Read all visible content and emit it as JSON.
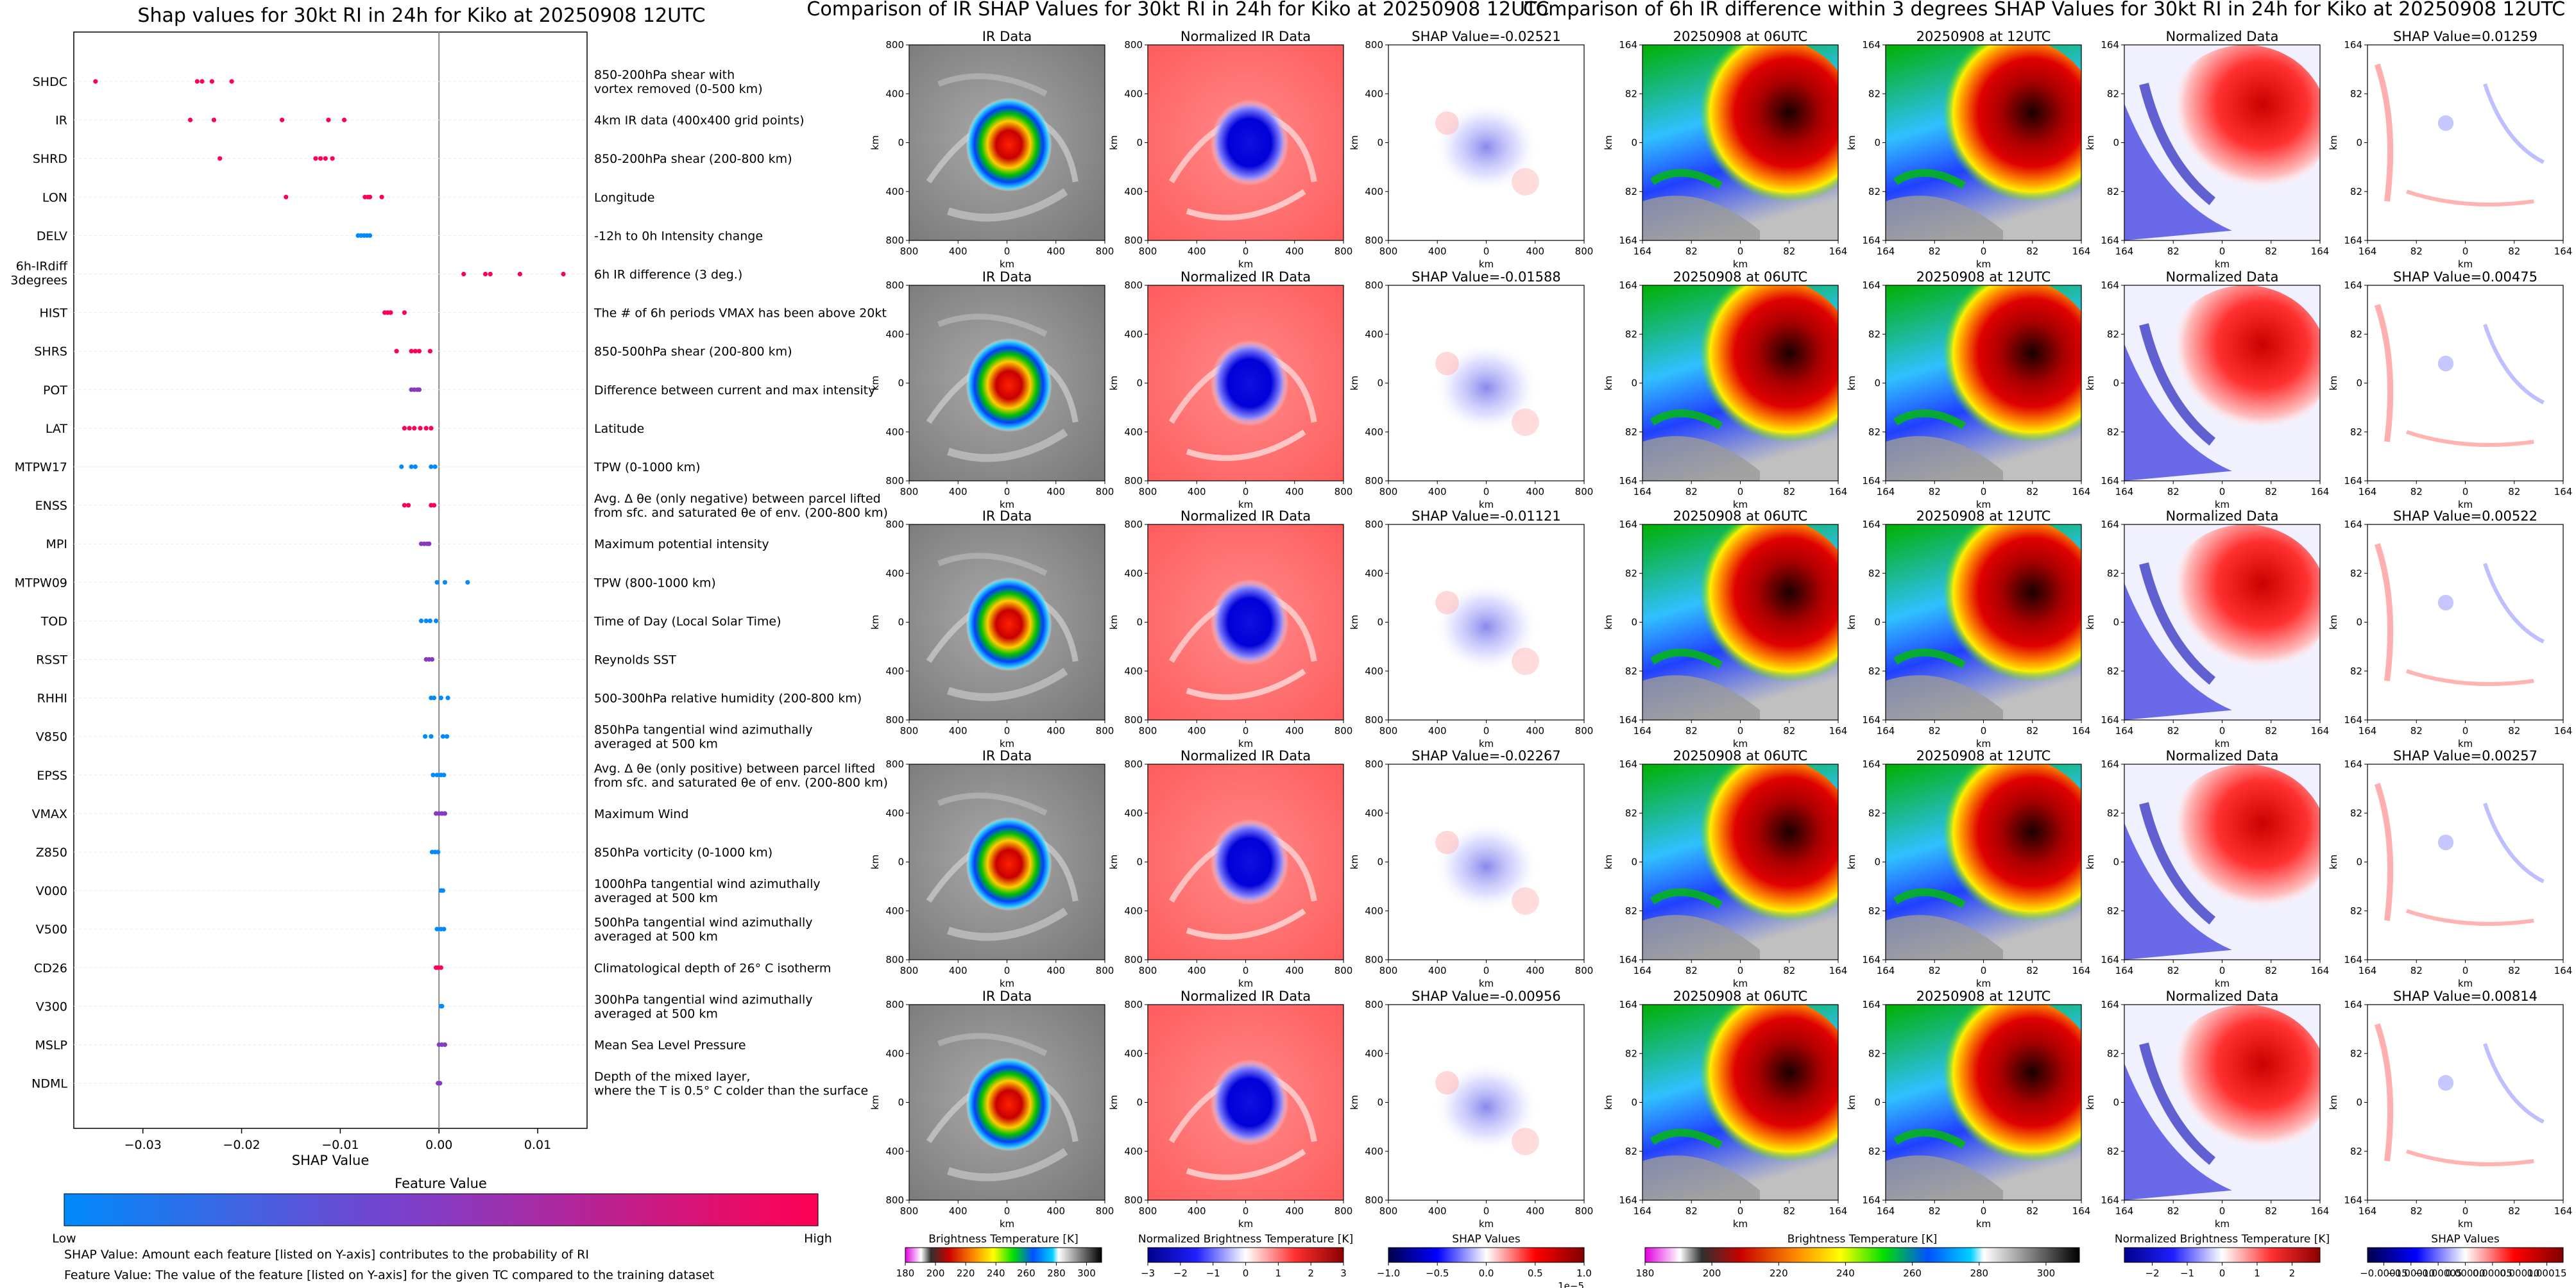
{
  "chart_data": [
    {
      "type": "scatter",
      "title": "Shap values for 30kt RI in 24h for Kiko at 20250908 12UTC",
      "xlabel": "SHAP Value",
      "xlim": [
        -0.037,
        0.015
      ],
      "xticks": [
        -0.03,
        -0.02,
        -0.01,
        0.0,
        0.01
      ],
      "xtick_labels": [
        "−0.03",
        "−0.02",
        "−0.01",
        "0.00",
        "0.01"
      ],
      "features": [
        {
          "name": "SHDC",
          "desc": "850-200hPa shear with\nvortex removed (0-500 km)",
          "points": [
            [
              -0.0348,
              1.0
            ],
            [
              -0.0245,
              1.0
            ],
            [
              -0.024,
              1.0
            ],
            [
              -0.023,
              1.0
            ],
            [
              -0.021,
              1.0
            ]
          ]
        },
        {
          "name": "IR",
          "desc": "4km IR data (400x400 grid points)",
          "points": [
            [
              -0.0252,
              1.0
            ],
            [
              -0.0228,
              1.0
            ],
            [
              -0.0159,
              1.0
            ],
            [
              -0.0112,
              1.0
            ],
            [
              -0.0096,
              1.0
            ]
          ]
        },
        {
          "name": "SHRD",
          "desc": "850-200hPa shear (200-800 km)",
          "points": [
            [
              -0.0222,
              1.0
            ],
            [
              -0.0125,
              1.0
            ],
            [
              -0.012,
              1.0
            ],
            [
              -0.0115,
              1.0
            ],
            [
              -0.0108,
              1.0
            ]
          ]
        },
        {
          "name": "LON",
          "desc": "Longitude",
          "points": [
            [
              -0.0155,
              1.0
            ],
            [
              -0.0075,
              1.0
            ],
            [
              -0.0072,
              1.0
            ],
            [
              -0.007,
              1.0
            ],
            [
              -0.0058,
              1.0
            ]
          ]
        },
        {
          "name": "DELV",
          "desc": "-12h to 0h Intensity change",
          "points": [
            [
              -0.0082,
              0.0
            ],
            [
              -0.0079,
              0.0
            ],
            [
              -0.0076,
              0.0
            ],
            [
              -0.0073,
              0.0
            ],
            [
              -0.007,
              0.0
            ]
          ]
        },
        {
          "name": "6h-IRdiff\n3degrees",
          "desc": "6h IR difference (3 deg.)",
          "points": [
            [
              0.0025,
              1.0
            ],
            [
              0.0047,
              1.0
            ],
            [
              0.0052,
              1.0
            ],
            [
              0.0082,
              1.0
            ],
            [
              0.0126,
              1.0
            ]
          ]
        },
        {
          "name": "HIST",
          "desc": "The # of 6h periods VMAX has been above 20kt",
          "points": [
            [
              -0.0055,
              1.0
            ],
            [
              -0.0052,
              1.0
            ],
            [
              -0.0049,
              1.0
            ],
            [
              -0.0035,
              1.0
            ]
          ]
        },
        {
          "name": "SHRS",
          "desc": "850-500hPa shear (200-800 km)",
          "points": [
            [
              -0.0043,
              1.0
            ],
            [
              -0.0028,
              1.0
            ],
            [
              -0.0024,
              1.0
            ],
            [
              -0.002,
              1.0
            ],
            [
              -0.0009,
              1.0
            ]
          ]
        },
        {
          "name": "POT",
          "desc": "Difference between current and max intensity",
          "points": [
            [
              -0.0028,
              0.5
            ],
            [
              -0.0025,
              0.5
            ],
            [
              -0.0022,
              0.5
            ],
            [
              -0.002,
              0.5
            ]
          ]
        },
        {
          "name": "LAT",
          "desc": "Latitude",
          "points": [
            [
              -0.0035,
              1.0
            ],
            [
              -0.003,
              1.0
            ],
            [
              -0.0025,
              1.0
            ],
            [
              -0.0019,
              1.0
            ],
            [
              -0.0013,
              1.0
            ],
            [
              -0.0008,
              1.0
            ]
          ]
        },
        {
          "name": "MTPW17",
          "desc": "TPW (0-1000 km)",
          "points": [
            [
              -0.0038,
              0.0
            ],
            [
              -0.0028,
              0.0
            ],
            [
              -0.0024,
              0.0
            ],
            [
              -0.0008,
              0.0
            ],
            [
              -0.0004,
              0.0
            ]
          ]
        },
        {
          "name": "ENSS",
          "desc": "Avg. Δ θe (only negative) between parcel lifted\nfrom sfc. and saturated θe of env. (200-800 km)",
          "points": [
            [
              -0.0035,
              1.0
            ],
            [
              -0.0031,
              1.0
            ],
            [
              -0.0008,
              1.0
            ],
            [
              -0.0005,
              1.0
            ]
          ]
        },
        {
          "name": "MPI",
          "desc": "Maximum potential intensity",
          "points": [
            [
              -0.0018,
              0.5
            ],
            [
              -0.0015,
              0.5
            ],
            [
              -0.0012,
              0.5
            ],
            [
              -0.001,
              0.5
            ]
          ]
        },
        {
          "name": "MTPW09",
          "desc": "TPW (800-1000 km)",
          "points": [
            [
              -0.0002,
              0.0
            ],
            [
              0.0006,
              0.0
            ],
            [
              0.0029,
              0.0
            ]
          ]
        },
        {
          "name": "TOD",
          "desc": "Time of Day (Local Solar Time)",
          "points": [
            [
              -0.0018,
              0.0
            ],
            [
              -0.0013,
              0.0
            ],
            [
              -0.0009,
              0.0
            ],
            [
              -0.0003,
              0.0
            ]
          ]
        },
        {
          "name": "RSST",
          "desc": "Reynolds SST",
          "points": [
            [
              -0.0013,
              0.5
            ],
            [
              -0.001,
              0.5
            ],
            [
              -0.0007,
              0.5
            ]
          ]
        },
        {
          "name": "RHHI",
          "desc": "500-300hPa relative humidity (200-800 km)",
          "points": [
            [
              -0.0008,
              0.0
            ],
            [
              -0.0005,
              0.0
            ],
            [
              0.0002,
              0.0
            ],
            [
              0.0009,
              0.0
            ]
          ]
        },
        {
          "name": "V850",
          "desc": "850hPa tangential wind azimuthally\naveraged at 500 km",
          "points": [
            [
              -0.0014,
              0.0
            ],
            [
              -0.0008,
              0.0
            ],
            [
              0.0004,
              0.0
            ],
            [
              0.0008,
              0.0
            ]
          ]
        },
        {
          "name": "EPSS",
          "desc": "Avg. Δ θe (only positive) between parcel lifted\nfrom sfc. and saturated θe of env. (200-800 km)",
          "points": [
            [
              -0.0006,
              0.0
            ],
            [
              -0.0002,
              0.0
            ],
            [
              0.0002,
              0.0
            ],
            [
              0.0005,
              0.0
            ]
          ]
        },
        {
          "name": "VMAX",
          "desc": "Maximum Wind",
          "points": [
            [
              -0.0003,
              0.5
            ],
            [
              0.0,
              0.5
            ],
            [
              0.0003,
              0.5
            ],
            [
              0.0006,
              0.5
            ]
          ]
        },
        {
          "name": "Z850",
          "desc": "850hPa vorticity (0-1000 km)",
          "points": [
            [
              -0.0007,
              0.0
            ],
            [
              -0.0004,
              0.0
            ],
            [
              -0.0001,
              0.0
            ]
          ]
        },
        {
          "name": "V000",
          "desc": "1000hPa tangential wind azimuthally\naveraged at 500 km",
          "points": [
            [
              0.0002,
              0.0
            ],
            [
              0.0004,
              0.0
            ]
          ]
        },
        {
          "name": "V500",
          "desc": "500hPa tangential wind azimuthally\naveraged at 500 km",
          "points": [
            [
              -0.0002,
              0.0
            ],
            [
              0.0002,
              0.0
            ],
            [
              0.0005,
              0.0
            ]
          ]
        },
        {
          "name": "CD26",
          "desc": "Climatological depth of 26° C isotherm",
          "points": [
            [
              -0.0003,
              1.0
            ],
            [
              -0.0001,
              1.0
            ],
            [
              0.0002,
              1.0
            ]
          ]
        },
        {
          "name": "V300",
          "desc": "300hPa tangential wind azimuthally\naveraged at 500 km",
          "points": [
            [
              0.0002,
              0.0
            ],
            [
              0.0003,
              0.0
            ]
          ]
        },
        {
          "name": "MSLP",
          "desc": "Mean Sea Level Pressure",
          "points": [
            [
              0.0,
              0.5
            ],
            [
              0.0003,
              0.5
            ],
            [
              0.0006,
              0.5
            ]
          ]
        },
        {
          "name": "NDML",
          "desc": "Depth of the mixed layer,\nwhere the T is 0.5° C colder than the surface",
          "points": [
            [
              -0.0001,
              0.5
            ],
            [
              0.0001,
              0.5
            ]
          ]
        }
      ],
      "colorbar": {
        "title": "Feature Value",
        "low": "Low",
        "high": "High",
        "colors": [
          "#008afb",
          "#7b40cc",
          "#ff0052"
        ]
      }
    },
    {
      "type": "heatmap",
      "title": "Comparison of IR SHAP Values for 30kt RI in 24h for Kiko at 20250908 12UTC",
      "column_titles": [
        "IR Data",
        "Normalized IR Data"
      ],
      "shap_titles": [
        "SHAP Value=-0.02521",
        "SHAP Value=-0.01588",
        "SHAP Value=-0.01121",
        "SHAP Value=-0.02267",
        "SHAP Value=-0.00956"
      ],
      "xlabel": "km",
      "ylabel": "km",
      "xtick_labels": [
        "800",
        "400",
        "0",
        "400",
        "800"
      ],
      "ytick_labels": [
        "800",
        "400",
        "0",
        "400",
        "800"
      ],
      "colorbars": [
        {
          "label": "Brightness Temperature [K]",
          "ticks": [
            "180",
            "200",
            "220",
            "240",
            "260",
            "280",
            "300"
          ],
          "vmin": 180,
          "vmax": 310
        },
        {
          "label": "Normalized Brightness Temperature [K]",
          "ticks": [
            "−3",
            "−2",
            "−1",
            "0",
            "1",
            "2",
            "3"
          ],
          "vmin": -3,
          "vmax": 3
        },
        {
          "label": "SHAP Values",
          "ticks": [
            "−1.0",
            "−0.5",
            "0.0",
            "0.5",
            "1.0"
          ],
          "vmin": -1.0,
          "vmax": 1.0,
          "offset": "1e−5"
        }
      ]
    },
    {
      "type": "heatmap",
      "title": "Comparison of 6h IR difference within 3 degrees SHAP Values for 30kt RI in 24h for Kiko at 20250908 12UTC",
      "column_titles": [
        "20250908 at 06UTC",
        "20250908 at 12UTC",
        "Normalized Data"
      ],
      "shap_titles": [
        "SHAP Value=0.01259",
        "SHAP Value=0.00475",
        "SHAP Value=0.00522",
        "SHAP Value=0.00257",
        "SHAP Value=0.00814"
      ],
      "xlabel": "km",
      "ylabel": "km",
      "xtick_labels": [
        "164",
        "82",
        "0",
        "82",
        "164"
      ],
      "ytick_labels": [
        "164",
        "82",
        "0",
        "82",
        "164"
      ],
      "colorbars": [
        {
          "label": "Brightness Temperature [K]",
          "ticks": [
            "180",
            "200",
            "220",
            "240",
            "260",
            "280",
            "300"
          ],
          "vmin": 180,
          "vmax": 310
        },
        {
          "label": "Normalized Brightness Temperature [K]",
          "ticks": [
            "−2",
            "−1",
            "0",
            "1",
            "2"
          ],
          "vmin": -2.8,
          "vmax": 2.8
        },
        {
          "label": "SHAP Values",
          "ticks": [
            "−0.00015",
            "−0.00010",
            "−0.00005",
            "0.00000",
            "0.00005",
            "0.00010",
            "0.00015"
          ],
          "vmin": -0.00018,
          "vmax": 0.00018
        }
      ]
    }
  ],
  "notes": [
    "SHAP Value: Amount each feature [listed on Y-axis] contributes to the probability of RI",
    "Feature Value: The value of the feature [listed on Y-axis] for the given TC compared to the training dataset"
  ]
}
